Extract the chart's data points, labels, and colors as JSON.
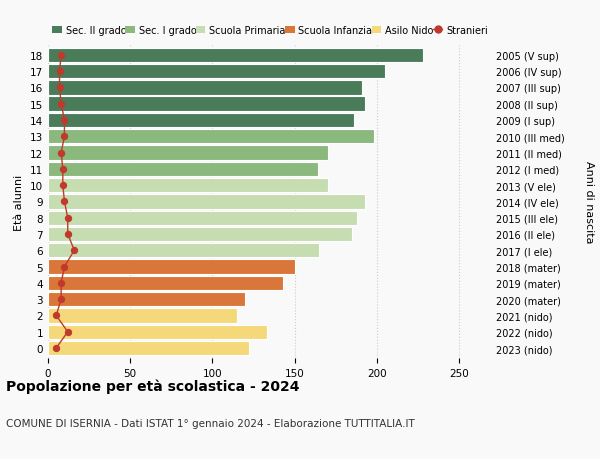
{
  "ages": [
    18,
    17,
    16,
    15,
    14,
    13,
    12,
    11,
    10,
    9,
    8,
    7,
    6,
    5,
    4,
    3,
    2,
    1,
    0
  ],
  "right_labels": [
    "2005 (V sup)",
    "2006 (IV sup)",
    "2007 (III sup)",
    "2008 (II sup)",
    "2009 (I sup)",
    "2010 (III med)",
    "2011 (II med)",
    "2012 (I med)",
    "2013 (V ele)",
    "2014 (IV ele)",
    "2015 (III ele)",
    "2016 (II ele)",
    "2017 (I ele)",
    "2018 (mater)",
    "2019 (mater)",
    "2020 (mater)",
    "2021 (nido)",
    "2022 (nido)",
    "2023 (nido)"
  ],
  "bar_values": [
    228,
    205,
    191,
    193,
    186,
    198,
    170,
    164,
    170,
    193,
    188,
    185,
    165,
    150,
    143,
    120,
    115,
    133,
    122
  ],
  "bar_colors": [
    "#4a7c59",
    "#4a7c59",
    "#4a7c59",
    "#4a7c59",
    "#4a7c59",
    "#8ab87d",
    "#8ab87d",
    "#8ab87d",
    "#c5ddb0",
    "#c5ddb0",
    "#c5ddb0",
    "#c5ddb0",
    "#c5ddb0",
    "#d9773a",
    "#d9773a",
    "#d9773a",
    "#f5d87a",
    "#f5d87a",
    "#f5d87a"
  ],
  "stranieri_values": [
    8,
    7,
    7,
    8,
    10,
    10,
    8,
    9,
    9,
    10,
    12,
    12,
    16,
    10,
    8,
    8,
    5,
    12,
    5
  ],
  "legend_labels": [
    "Sec. II grado",
    "Sec. I grado",
    "Scuola Primaria",
    "Scuola Infanzia",
    "Asilo Nido",
    "Stranieri"
  ],
  "legend_colors": [
    "#4a7c59",
    "#8ab87d",
    "#c5ddb0",
    "#d9773a",
    "#f5d87a",
    "#c0392b"
  ],
  "ylabel_left": "Età alunni",
  "ylabel_right": "Anni di nascita",
  "title_bold": "Popolazione per età scolastica - 2024",
  "subtitle": "COMUNE DI ISERNIA - Dati ISTAT 1° gennaio 2024 - Elaborazione TUTTITALIA.IT",
  "xlim": [
    0,
    270
  ],
  "xticks": [
    0,
    50,
    100,
    150,
    200,
    250
  ],
  "background_color": "#f9f9f9",
  "grid_color": "#cccccc",
  "stranieri_color": "#c0392b",
  "bar_height": 0.88
}
